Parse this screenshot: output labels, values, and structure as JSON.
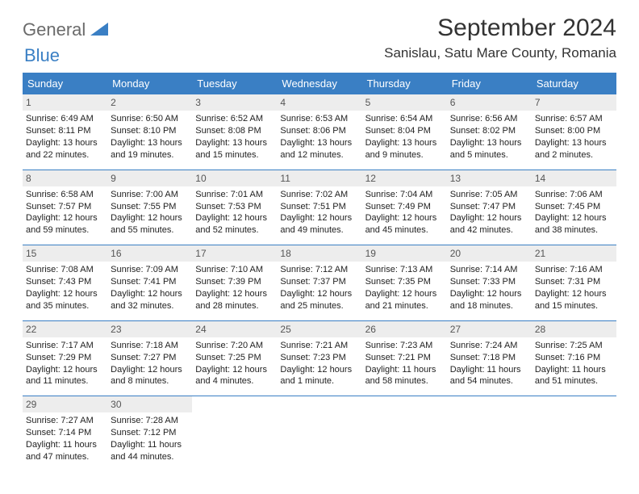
{
  "logo": {
    "text1": "General",
    "text2": "Blue"
  },
  "title": "September 2024",
  "location": "Sanislau, Satu Mare County, Romania",
  "colors": {
    "header_bg": "#3a7fc4",
    "header_fg": "#ffffff",
    "daynum_bg": "#ededed",
    "daynum_fg": "#555555",
    "text": "#222222",
    "page_bg": "#ffffff",
    "logo_gray": "#6b6b6b",
    "logo_blue": "#3a7fc4"
  },
  "day_headers": [
    "Sunday",
    "Monday",
    "Tuesday",
    "Wednesday",
    "Thursday",
    "Friday",
    "Saturday"
  ],
  "weeks": [
    [
      {
        "n": "1",
        "sr": "Sunrise: 6:49 AM",
        "ss": "Sunset: 8:11 PM",
        "d1": "Daylight: 13 hours",
        "d2": "and 22 minutes."
      },
      {
        "n": "2",
        "sr": "Sunrise: 6:50 AM",
        "ss": "Sunset: 8:10 PM",
        "d1": "Daylight: 13 hours",
        "d2": "and 19 minutes."
      },
      {
        "n": "3",
        "sr": "Sunrise: 6:52 AM",
        "ss": "Sunset: 8:08 PM",
        "d1": "Daylight: 13 hours",
        "d2": "and 15 minutes."
      },
      {
        "n": "4",
        "sr": "Sunrise: 6:53 AM",
        "ss": "Sunset: 8:06 PM",
        "d1": "Daylight: 13 hours",
        "d2": "and 12 minutes."
      },
      {
        "n": "5",
        "sr": "Sunrise: 6:54 AM",
        "ss": "Sunset: 8:04 PM",
        "d1": "Daylight: 13 hours",
        "d2": "and 9 minutes."
      },
      {
        "n": "6",
        "sr": "Sunrise: 6:56 AM",
        "ss": "Sunset: 8:02 PM",
        "d1": "Daylight: 13 hours",
        "d2": "and 5 minutes."
      },
      {
        "n": "7",
        "sr": "Sunrise: 6:57 AM",
        "ss": "Sunset: 8:00 PM",
        "d1": "Daylight: 13 hours",
        "d2": "and 2 minutes."
      }
    ],
    [
      {
        "n": "8",
        "sr": "Sunrise: 6:58 AM",
        "ss": "Sunset: 7:57 PM",
        "d1": "Daylight: 12 hours",
        "d2": "and 59 minutes."
      },
      {
        "n": "9",
        "sr": "Sunrise: 7:00 AM",
        "ss": "Sunset: 7:55 PM",
        "d1": "Daylight: 12 hours",
        "d2": "and 55 minutes."
      },
      {
        "n": "10",
        "sr": "Sunrise: 7:01 AM",
        "ss": "Sunset: 7:53 PM",
        "d1": "Daylight: 12 hours",
        "d2": "and 52 minutes."
      },
      {
        "n": "11",
        "sr": "Sunrise: 7:02 AM",
        "ss": "Sunset: 7:51 PM",
        "d1": "Daylight: 12 hours",
        "d2": "and 49 minutes."
      },
      {
        "n": "12",
        "sr": "Sunrise: 7:04 AM",
        "ss": "Sunset: 7:49 PM",
        "d1": "Daylight: 12 hours",
        "d2": "and 45 minutes."
      },
      {
        "n": "13",
        "sr": "Sunrise: 7:05 AM",
        "ss": "Sunset: 7:47 PM",
        "d1": "Daylight: 12 hours",
        "d2": "and 42 minutes."
      },
      {
        "n": "14",
        "sr": "Sunrise: 7:06 AM",
        "ss": "Sunset: 7:45 PM",
        "d1": "Daylight: 12 hours",
        "d2": "and 38 minutes."
      }
    ],
    [
      {
        "n": "15",
        "sr": "Sunrise: 7:08 AM",
        "ss": "Sunset: 7:43 PM",
        "d1": "Daylight: 12 hours",
        "d2": "and 35 minutes."
      },
      {
        "n": "16",
        "sr": "Sunrise: 7:09 AM",
        "ss": "Sunset: 7:41 PM",
        "d1": "Daylight: 12 hours",
        "d2": "and 32 minutes."
      },
      {
        "n": "17",
        "sr": "Sunrise: 7:10 AM",
        "ss": "Sunset: 7:39 PM",
        "d1": "Daylight: 12 hours",
        "d2": "and 28 minutes."
      },
      {
        "n": "18",
        "sr": "Sunrise: 7:12 AM",
        "ss": "Sunset: 7:37 PM",
        "d1": "Daylight: 12 hours",
        "d2": "and 25 minutes."
      },
      {
        "n": "19",
        "sr": "Sunrise: 7:13 AM",
        "ss": "Sunset: 7:35 PM",
        "d1": "Daylight: 12 hours",
        "d2": "and 21 minutes."
      },
      {
        "n": "20",
        "sr": "Sunrise: 7:14 AM",
        "ss": "Sunset: 7:33 PM",
        "d1": "Daylight: 12 hours",
        "d2": "and 18 minutes."
      },
      {
        "n": "21",
        "sr": "Sunrise: 7:16 AM",
        "ss": "Sunset: 7:31 PM",
        "d1": "Daylight: 12 hours",
        "d2": "and 15 minutes."
      }
    ],
    [
      {
        "n": "22",
        "sr": "Sunrise: 7:17 AM",
        "ss": "Sunset: 7:29 PM",
        "d1": "Daylight: 12 hours",
        "d2": "and 11 minutes."
      },
      {
        "n": "23",
        "sr": "Sunrise: 7:18 AM",
        "ss": "Sunset: 7:27 PM",
        "d1": "Daylight: 12 hours",
        "d2": "and 8 minutes."
      },
      {
        "n": "24",
        "sr": "Sunrise: 7:20 AM",
        "ss": "Sunset: 7:25 PM",
        "d1": "Daylight: 12 hours",
        "d2": "and 4 minutes."
      },
      {
        "n": "25",
        "sr": "Sunrise: 7:21 AM",
        "ss": "Sunset: 7:23 PM",
        "d1": "Daylight: 12 hours",
        "d2": "and 1 minute."
      },
      {
        "n": "26",
        "sr": "Sunrise: 7:23 AM",
        "ss": "Sunset: 7:21 PM",
        "d1": "Daylight: 11 hours",
        "d2": "and 58 minutes."
      },
      {
        "n": "27",
        "sr": "Sunrise: 7:24 AM",
        "ss": "Sunset: 7:18 PM",
        "d1": "Daylight: 11 hours",
        "d2": "and 54 minutes."
      },
      {
        "n": "28",
        "sr": "Sunrise: 7:25 AM",
        "ss": "Sunset: 7:16 PM",
        "d1": "Daylight: 11 hours",
        "d2": "and 51 minutes."
      }
    ],
    [
      {
        "n": "29",
        "sr": "Sunrise: 7:27 AM",
        "ss": "Sunset: 7:14 PM",
        "d1": "Daylight: 11 hours",
        "d2": "and 47 minutes."
      },
      {
        "n": "30",
        "sr": "Sunrise: 7:28 AM",
        "ss": "Sunset: 7:12 PM",
        "d1": "Daylight: 11 hours",
        "d2": "and 44 minutes."
      },
      null,
      null,
      null,
      null,
      null
    ]
  ]
}
